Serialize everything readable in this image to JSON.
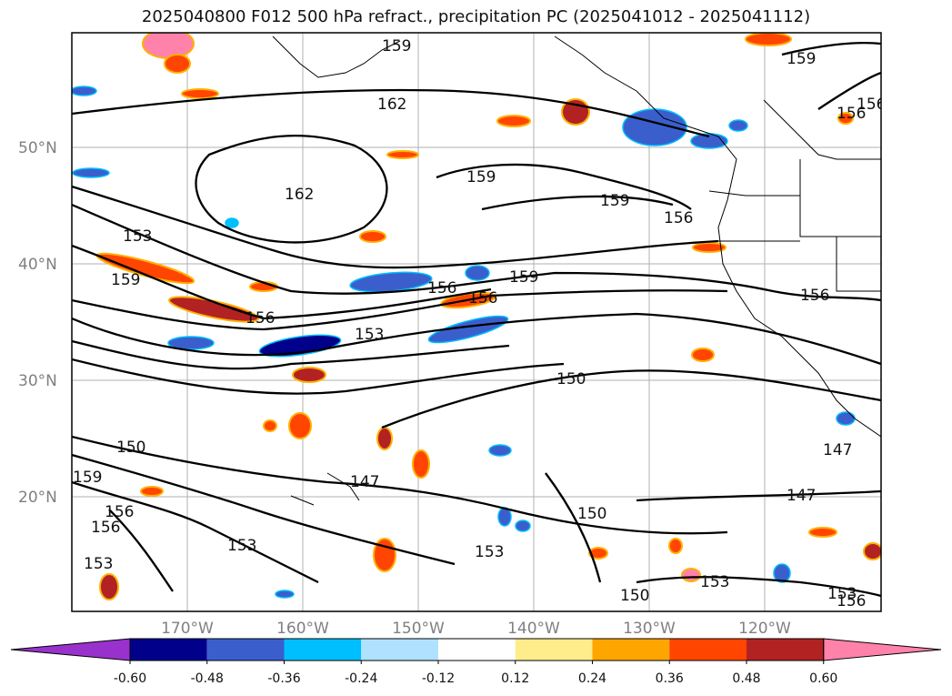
{
  "title": "2025040800 F012 500 hPa refract., precipitation PC (2025041012 - 2025041112)",
  "latitude_labels": [
    "50°N",
    "40°N",
    "30°N",
    "20°N"
  ],
  "longitude_labels": [
    "170°W",
    "160°W",
    "150°W",
    "140°W",
    "130°W",
    "120°W"
  ],
  "contour_labels": [
    "159",
    "162",
    "159",
    "156",
    "156",
    "159",
    "162",
    "159",
    "156",
    "153",
    "159",
    "156",
    "156",
    "153",
    "156",
    "159",
    "150",
    "153",
    "150",
    "159",
    "156",
    "147",
    "156",
    "156",
    "153",
    "150",
    "153",
    "150",
    "153",
    "147",
    "147",
    "153",
    "156"
  ],
  "colorbar": {
    "ticks": [
      "-0.60",
      "-0.48",
      "-0.36",
      "-0.24",
      "-0.12",
      "0.12",
      "0.24",
      "0.36",
      "0.48",
      "0.60"
    ],
    "colors": [
      "#9932cc",
      "#00008b",
      "#3a5fcd",
      "#00bfff",
      "#b0e2ff",
      "#ffffff",
      "#ffec8b",
      "#ffa500",
      "#ff4500",
      "#b22222",
      "#ff82ab"
    ]
  }
}
